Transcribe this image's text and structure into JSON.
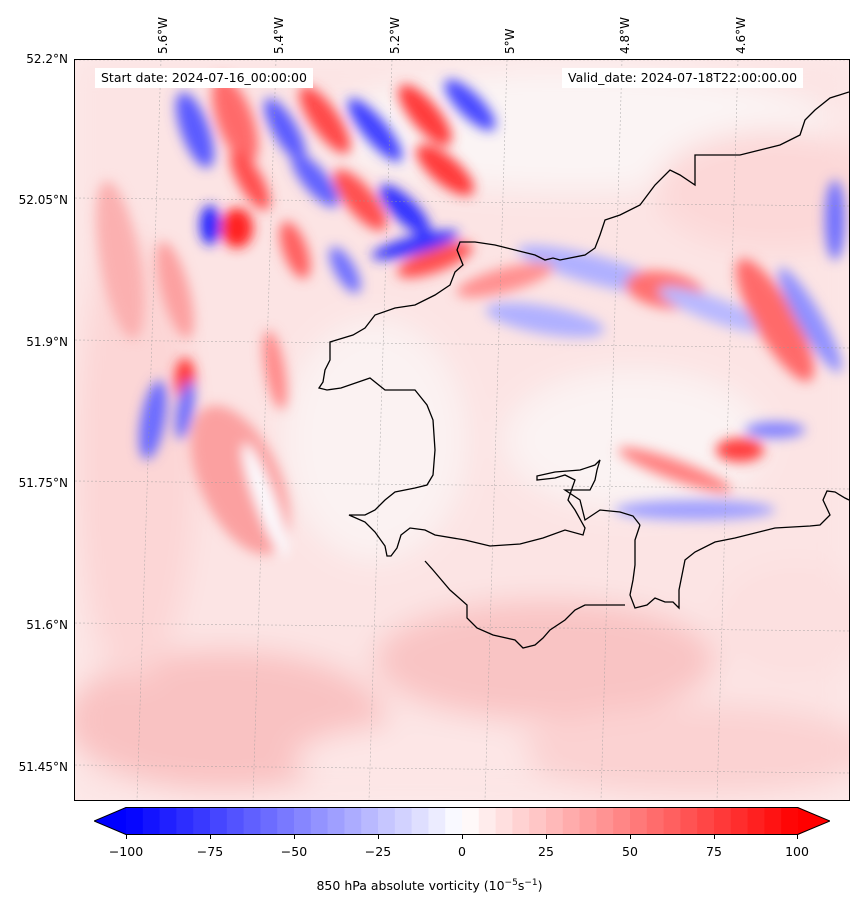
{
  "map": {
    "start_date": "Start date: 2024-07-16_00:00:00",
    "valid_date": "Valid_date: 2024-07-18T22:00:00.00",
    "lon_labels": [
      "5.6°W",
      "5.4°W",
      "5.2°W",
      "5°W",
      "4.8°W",
      "4.6°W"
    ],
    "lat_labels": [
      "52.2°N",
      "52.05°N",
      "51.9°N",
      "51.75°N",
      "51.6°N",
      "51.45°N"
    ],
    "field": "850 hPa absolute vorticity",
    "coastline_color": "#000000",
    "gridlines": true
  },
  "colorbar": {
    "label": "850 hPa absolute vorticity (10",
    "label_exp1": "−5",
    "label_mid": "s",
    "label_exp2": "−1",
    "label_end": ")",
    "ticks": [
      "−100",
      "−75",
      "−50",
      "−25",
      "0",
      "25",
      "50",
      "75",
      "100"
    ],
    "range": [
      -100,
      100
    ],
    "negative_color": "#0000ff",
    "zero_color": "#ffffff",
    "positive_color": "#ff0000",
    "extend": "both"
  }
}
